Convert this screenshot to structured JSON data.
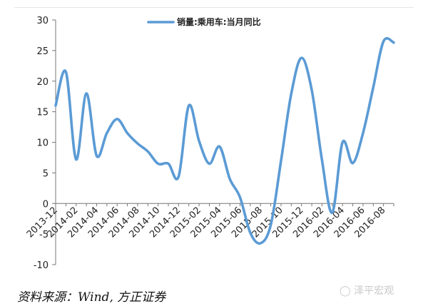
{
  "chart_data": {
    "type": "line",
    "legend": "销量:乘用车:当月同比",
    "legend_position": "top-center",
    "series_color": "#5b9bd5",
    "grid": false,
    "ylim": [
      -10,
      30
    ],
    "y_ticks": [
      "30",
      "25",
      "20",
      "15",
      "10",
      "5",
      "0",
      "-5",
      "-10"
    ],
    "x_labels": [
      "2013-12",
      "2014-02",
      "2014-04",
      "2014-06",
      "2014-08",
      "2014-10",
      "2014-12",
      "2015-02",
      "2015-04",
      "2015-06",
      "2015-08",
      "2015-10",
      "2015-12",
      "2016-02",
      "2016-04",
      "2016-06",
      "2016-08"
    ],
    "series": [
      {
        "name": "销量:乘用车:当月同比",
        "x": [
          "2013-12",
          "2014-01",
          "2014-02",
          "2014-03",
          "2014-04",
          "2014-05",
          "2014-06",
          "2014-07",
          "2014-08",
          "2014-09",
          "2014-10",
          "2014-11",
          "2014-12",
          "2015-01",
          "2015-02",
          "2015-03",
          "2015-04",
          "2015-05",
          "2015-06",
          "2015-07",
          "2015-08",
          "2015-09",
          "2015-10",
          "2015-11",
          "2015-12",
          "2016-01",
          "2016-02",
          "2016-03",
          "2016-04",
          "2016-05",
          "2016-06",
          "2016-07",
          "2016-08",
          "2016-09"
        ],
        "values": [
          16,
          21.5,
          7.2,
          18,
          7.8,
          11.5,
          13.8,
          11.5,
          9.8,
          8.5,
          6.5,
          6.5,
          4.4,
          16,
          10.2,
          6.5,
          9.3,
          4.0,
          1.0,
          -4.8,
          -6.5,
          -3.5,
          7.0,
          18.0,
          23.8,
          18.5,
          7.0,
          -1.5,
          10.0,
          6.6,
          11.5,
          19.0,
          26.5,
          26.3
        ]
      }
    ]
  },
  "source": "资料来源：Wind, 方正证券",
  "watermark": "泽平宏观"
}
